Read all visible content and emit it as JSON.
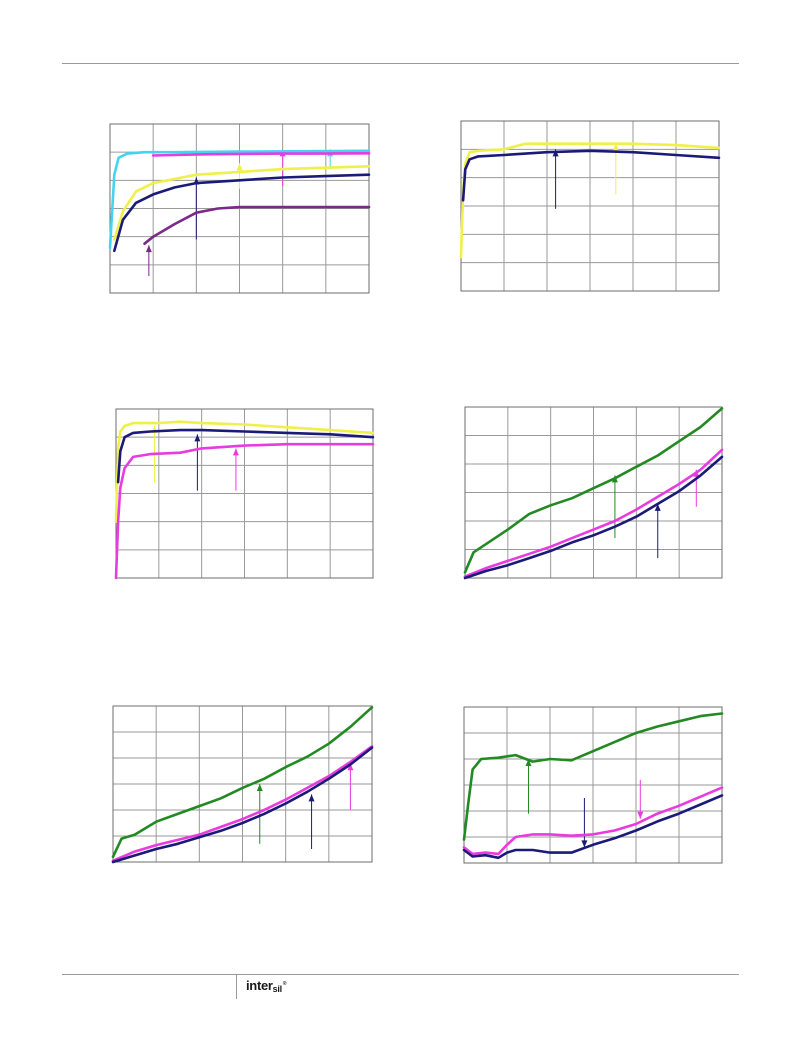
{
  "footer": {
    "brand_main": "inter",
    "brand_sub": "sil",
    "brand_mark": "®"
  },
  "colors": {
    "cyan": "#44d4f0",
    "magenta": "#e83be0",
    "yellow": "#f0f04a",
    "navy": "#1c1a78",
    "purple": "#7a2a88",
    "green": "#238a23",
    "grid": "#9a9a9a"
  },
  "chart_data": [
    {
      "type": "line",
      "xlim": [
        0,
        6
      ],
      "ylim": [
        0,
        6
      ],
      "grid": true,
      "series": [
        {
          "color": "cyan",
          "x": [
            0,
            0.1,
            0.2,
            0.4,
            0.8,
            1.5,
            3,
            6
          ],
          "y": [
            1.6,
            4.2,
            4.8,
            4.95,
            5.0,
            5.0,
            5.02,
            5.05
          ]
        },
        {
          "color": "magenta",
          "x": [
            1,
            1.5,
            2,
            3,
            4,
            5,
            6
          ],
          "y": [
            4.88,
            4.9,
            4.92,
            4.94,
            4.95,
            4.95,
            4.96
          ]
        },
        {
          "color": "yellow",
          "x": [
            0.1,
            0.3,
            0.6,
            1,
            1.5,
            2,
            3,
            4,
            5,
            6
          ],
          "y": [
            1.9,
            2.9,
            3.6,
            3.9,
            4.05,
            4.2,
            4.3,
            4.4,
            4.45,
            4.5
          ]
        },
        {
          "color": "navy",
          "x": [
            0.1,
            0.3,
            0.6,
            1,
            1.5,
            2,
            3,
            4,
            5,
            6
          ],
          "y": [
            1.5,
            2.6,
            3.2,
            3.5,
            3.75,
            3.9,
            4.0,
            4.1,
            4.15,
            4.2
          ]
        },
        {
          "color": "purple",
          "x": [
            0.8,
            1,
            1.5,
            2,
            2.5,
            3,
            4,
            5,
            6
          ],
          "y": [
            1.75,
            2.0,
            2.45,
            2.85,
            3.0,
            3.05,
            3.05,
            3.05,
            3.05
          ]
        }
      ],
      "annotations": [
        {
          "color": "purple",
          "x": 0.9,
          "y_tail": 0.6,
          "y_head": 1.7
        },
        {
          "color": "navy",
          "x": 2.0,
          "y_tail": 1.9,
          "y_head": 4.1
        },
        {
          "color": "yellow",
          "x": 3.0,
          "y_tail": 3.7,
          "y_head": 4.6
        },
        {
          "color": "magenta",
          "x": 4.0,
          "y_tail": 3.8,
          "y_head": 5.1
        },
        {
          "color": "cyan",
          "x": 5.1,
          "y_tail": 4.4,
          "y_head": 5.1
        }
      ]
    },
    {
      "type": "line",
      "xlim": [
        0,
        6
      ],
      "ylim": [
        0,
        6
      ],
      "grid": true,
      "series": [
        {
          "color": "yellow",
          "x": [
            0,
            0.05,
            0.1,
            0.2,
            0.4,
            1,
            1.5,
            2,
            3,
            4,
            5,
            6
          ],
          "y": [
            1.2,
            3.5,
            4.5,
            4.9,
            4.95,
            5.0,
            5.2,
            5.2,
            5.2,
            5.2,
            5.15,
            5.05
          ]
        },
        {
          "color": "navy",
          "x": [
            0.05,
            0.1,
            0.2,
            0.4,
            1,
            1.5,
            2,
            3,
            4,
            5,
            6
          ],
          "y": [
            3.2,
            4.3,
            4.65,
            4.75,
            4.8,
            4.85,
            4.9,
            4.95,
            4.9,
            4.8,
            4.7
          ]
        }
      ],
      "annotations": [
        {
          "color": "navy",
          "x": 2.2,
          "y_tail": 2.9,
          "y_head": 5.0
        },
        {
          "color": "yellow",
          "x": 3.6,
          "y_tail": 3.4,
          "y_head": 5.2
        }
      ]
    },
    {
      "type": "line",
      "xlim": [
        0,
        6
      ],
      "ylim": [
        0,
        6
      ],
      "grid": true,
      "series": [
        {
          "color": "yellow",
          "x": [
            0,
            0.05,
            0.1,
            0.2,
            0.4,
            1,
            1.5,
            2,
            3,
            4,
            5,
            6
          ],
          "y": [
            2.0,
            4.6,
            5.2,
            5.4,
            5.5,
            5.5,
            5.55,
            5.5,
            5.45,
            5.35,
            5.25,
            5.15
          ]
        },
        {
          "color": "navy",
          "x": [
            0.05,
            0.1,
            0.2,
            0.4,
            0.8,
            1.5,
            2,
            3,
            4,
            5,
            6
          ],
          "y": [
            3.4,
            4.5,
            5.0,
            5.15,
            5.2,
            5.25,
            5.25,
            5.2,
            5.15,
            5.1,
            5.0
          ]
        },
        {
          "color": "magenta",
          "x": [
            0,
            0.05,
            0.1,
            0.2,
            0.4,
            0.8,
            1.5,
            2,
            3,
            4,
            5,
            6
          ],
          "y": [
            0,
            2.0,
            3.2,
            3.9,
            4.3,
            4.4,
            4.45,
            4.6,
            4.7,
            4.75,
            4.75,
            4.75
          ]
        }
      ],
      "annotations": [
        {
          "color": "yellow",
          "x": 0.9,
          "y_tail": 3.4,
          "y_head": 5.4
        },
        {
          "color": "navy",
          "x": 1.9,
          "y_tail": 3.1,
          "y_head": 5.1
        },
        {
          "color": "magenta",
          "x": 2.8,
          "y_tail": 3.1,
          "y_head": 4.6
        }
      ]
    },
    {
      "type": "line",
      "xlim": [
        0,
        6
      ],
      "ylim": [
        0,
        6
      ],
      "grid": true,
      "series": [
        {
          "color": "green",
          "x": [
            0,
            0.2,
            0.5,
            1,
            1.5,
            2,
            2.5,
            3,
            3.5,
            4,
            4.5,
            5,
            5.5,
            6
          ],
          "y": [
            0.2,
            0.9,
            1.2,
            1.7,
            2.25,
            2.55,
            2.8,
            3.15,
            3.5,
            3.9,
            4.3,
            4.8,
            5.3,
            5.95
          ]
        },
        {
          "color": "magenta",
          "x": [
            0,
            0.5,
            1,
            1.5,
            2,
            2.5,
            3,
            3.5,
            4,
            4.5,
            5,
            5.5,
            6
          ],
          "y": [
            0.05,
            0.35,
            0.6,
            0.85,
            1.1,
            1.4,
            1.7,
            2.0,
            2.4,
            2.85,
            3.3,
            3.8,
            4.5
          ]
        },
        {
          "color": "navy",
          "x": [
            0,
            0.5,
            1,
            1.5,
            2,
            2.5,
            3,
            3.5,
            4,
            4.5,
            5,
            5.5,
            6
          ],
          "y": [
            0,
            0.25,
            0.45,
            0.7,
            0.95,
            1.25,
            1.5,
            1.8,
            2.15,
            2.6,
            3.05,
            3.6,
            4.25
          ]
        }
      ],
      "annotations": [
        {
          "color": "green",
          "x": 3.5,
          "y_tail": 1.4,
          "y_head": 3.6
        },
        {
          "color": "navy",
          "x": 4.5,
          "y_tail": 0.7,
          "y_head": 2.6
        },
        {
          "color": "magenta",
          "x": 5.4,
          "y_tail": 2.5,
          "y_head": 3.8
        }
      ]
    },
    {
      "type": "line",
      "xlim": [
        0,
        6
      ],
      "ylim": [
        0,
        6
      ],
      "grid": true,
      "series": [
        {
          "color": "green",
          "x": [
            0,
            0.2,
            0.5,
            1,
            1.5,
            2,
            2.5,
            3,
            3.5,
            4,
            4.5,
            5,
            5.5,
            6
          ],
          "y": [
            0.2,
            0.9,
            1.05,
            1.55,
            1.85,
            2.15,
            2.45,
            2.85,
            3.2,
            3.65,
            4.05,
            4.55,
            5.2,
            5.95
          ]
        },
        {
          "color": "magenta",
          "x": [
            0,
            0.5,
            1,
            1.5,
            2,
            2.5,
            3,
            3.5,
            4,
            4.5,
            5,
            5.5,
            6
          ],
          "y": [
            0.05,
            0.4,
            0.65,
            0.85,
            1.05,
            1.35,
            1.65,
            2.0,
            2.4,
            2.85,
            3.3,
            3.85,
            4.45
          ]
        },
        {
          "color": "navy",
          "x": [
            0,
            0.5,
            1,
            1.5,
            2,
            2.5,
            3,
            3.5,
            4,
            4.5,
            5,
            5.5,
            6
          ],
          "y": [
            0,
            0.25,
            0.5,
            0.7,
            0.95,
            1.2,
            1.5,
            1.85,
            2.25,
            2.7,
            3.2,
            3.75,
            4.4
          ]
        }
      ],
      "annotations": [
        {
          "color": "green",
          "x": 3.4,
          "y_tail": 0.7,
          "y_head": 3.0
        },
        {
          "color": "navy",
          "x": 4.6,
          "y_tail": 0.5,
          "y_head": 2.6
        },
        {
          "color": "magenta",
          "x": 5.5,
          "y_tail": 2.0,
          "y_head": 3.8
        }
      ]
    },
    {
      "type": "line",
      "xlim": [
        0,
        6
      ],
      "ylim": [
        0,
        6
      ],
      "grid": true,
      "series": [
        {
          "color": "green",
          "x": [
            0,
            0.1,
            0.2,
            0.4,
            0.8,
            1.2,
            1.6,
            2,
            2.5,
            3,
            3.5,
            4,
            4.5,
            5,
            5.5,
            6
          ],
          "y": [
            0.9,
            2.3,
            3.6,
            4.0,
            4.05,
            4.15,
            3.9,
            4.0,
            3.95,
            4.3,
            4.65,
            5.0,
            5.25,
            5.45,
            5.65,
            5.75
          ]
        },
        {
          "color": "magenta",
          "x": [
            0,
            0.2,
            0.5,
            0.8,
            1,
            1.2,
            1.6,
            2,
            2.5,
            3,
            3.5,
            4,
            4.5,
            5,
            5.5,
            6
          ],
          "y": [
            0.6,
            0.35,
            0.4,
            0.35,
            0.7,
            1.0,
            1.1,
            1.1,
            1.05,
            1.1,
            1.25,
            1.5,
            1.9,
            2.2,
            2.55,
            2.9
          ]
        },
        {
          "color": "navy",
          "x": [
            0,
            0.2,
            0.5,
            0.8,
            1,
            1.2,
            1.6,
            2,
            2.5,
            3,
            3.5,
            4,
            4.5,
            5,
            5.5,
            6
          ],
          "y": [
            0.5,
            0.25,
            0.3,
            0.2,
            0.4,
            0.5,
            0.5,
            0.4,
            0.4,
            0.7,
            0.95,
            1.25,
            1.6,
            1.9,
            2.25,
            2.6
          ]
        }
      ],
      "annotations": [
        {
          "color": "green",
          "x": 1.5,
          "y_tail": 1.9,
          "y_head": 4.0
        },
        {
          "color": "navy",
          "x": 2.8,
          "y_tail": 2.5,
          "y_head": 0.6
        },
        {
          "color": "magenta",
          "x": 4.1,
          "y_tail": 3.2,
          "y_head": 1.7
        }
      ]
    }
  ]
}
